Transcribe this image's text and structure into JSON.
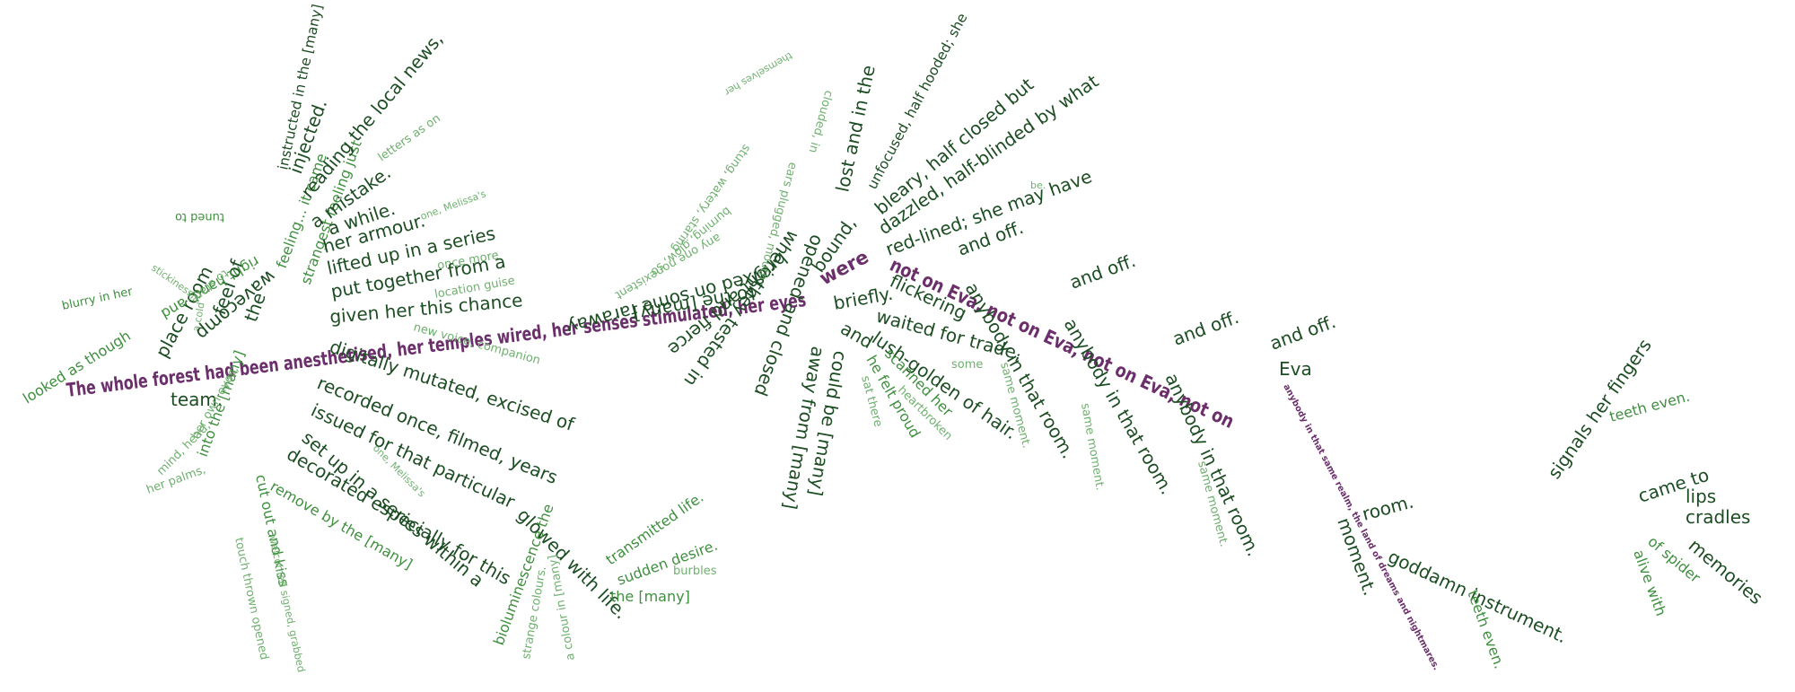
{
  "colors": {
    "main": "#6b2f6b",
    "dark": "#1d4d23",
    "mid": "#3f8f3f",
    "light": "#6fb06f",
    "faint": "#9ccc9c"
  },
  "main_sentence": {
    "segment_1": "The whole forest had been anesthetised, her temples wired, her senses stimulated, her eyes",
    "were": "were",
    "not_on_eva_1": "not on Eva, not on Eva, not on Eva, not on",
    "eva": "Eva",
    "segment_2": "anybody in that same realm, the land of dreams and nightmares."
  },
  "branches": {
    "place_room": "place room",
    "blurry": "blurry in her",
    "looked_as_though": "looked as though",
    "team": "team.",
    "the": "the",
    "feel": "feel of",
    "a_cold": "a cold",
    "stickiness": "stickiness,",
    "wavecomp": "wavecomp",
    "tuned_to": "tuned to",
    "right_hand": "right hand, and",
    "to_stare": "to stare...",
    "feeling": "feeling... it came",
    "strangest": "strangest feeling just",
    "a_mistake": "a mistake.",
    "a_while": "a while.",
    "reading": "reading the local news,",
    "letters": "letters as on",
    "injected": "injected.",
    "instructed": "instructed in the [many]",
    "her_armour": "her armour.",
    "lifted_up": "lifted up in a series",
    "once_more": "once more",
    "one_melissas": "one, Melissa's",
    "put_together": "put together from a",
    "location": "location guise",
    "given_her": "given her this chance",
    "new_voice": "new voice, companion",
    "digitally": "digitally mutated, excised of",
    "recorded": "recorded once, filmed, years",
    "issued": "issued for that particular",
    "melissas_2": "one, Melissa's",
    "set_up": "set up in a series within a",
    "decorated": "decorated especially for this",
    "remove": "remove by the [many]",
    "cut_out": "cut out and kiss",
    "touch": "touch thrown opened",
    "welcomed": "welcomed signed, grabbed",
    "into_the": "into the [many]",
    "her_palms": "her palms,",
    "her_own": "her own eyes,",
    "mind": "mind, head,",
    "glowed": "glowed with life.",
    "bioluminescence": "bioluminescence the",
    "strange_colours": "strange colours.",
    "a_colour": "a colour in [many]",
    "transmitted": "transmitted life.",
    "sudden": "sudden desire.",
    "burbles": "burbles",
    "the_many": "the [many]",
    "to_the_many": "to the [many]",
    "fixed_on": "fixed on some faraway",
    "any_one": "any one nonexistent",
    "bright": "bright and fierce",
    "burning": "burning, glow, so",
    "where_they": "where they tested in",
    "stung": "stung, watery, staring",
    "opened": "opened and closed",
    "ears_plugged": "ears plugged, mouth",
    "bound": "bound,",
    "lost": "lost and in the",
    "clouded": "clouded, in",
    "themselves": "themselves her",
    "unfocused": "unfocused, half hooded; she",
    "bleary": "bleary, half closed but",
    "dazzled": "dazzled, half-blinded by what",
    "red_lined": "red-lined; she may have",
    "be": "be.",
    "briefly": "briefly.",
    "flickering": "flickering",
    "and_off": "and off.",
    "and_off_2": "and off.",
    "and_off_3": "and off.",
    "and_off_4": "and off.",
    "and": "and",
    "could_be": "could be [many]",
    "away_from": "away from [many]",
    "lush_golden": "lush-golden of hair.",
    "waited_for": "waited for trade,",
    "some": "some",
    "scanned_her": "scanned her",
    "heartbroken": "heartbroken",
    "he_felt": "he felt proud",
    "sat_there": "sat there",
    "anybody_1": "anybody in that room.",
    "same_moment_1": "same moment.",
    "anybody_2": "anybody in that room.",
    "same_moment_2": "same moment.",
    "anybody_3": "anybody in that room.",
    "same_moment_3": "same moment.",
    "room": "room.",
    "moment": "moment.",
    "goddamn": "goddamn instrument.",
    "teeth_even": "teeth even.",
    "signals": "signals her fingers",
    "teeth_even_2": "teeth even.",
    "came_to": "came to",
    "lips": "lips",
    "cradles": "cradles",
    "memories": "memories",
    "of_spider": "of spider",
    "alive_with": "alive with"
  }
}
